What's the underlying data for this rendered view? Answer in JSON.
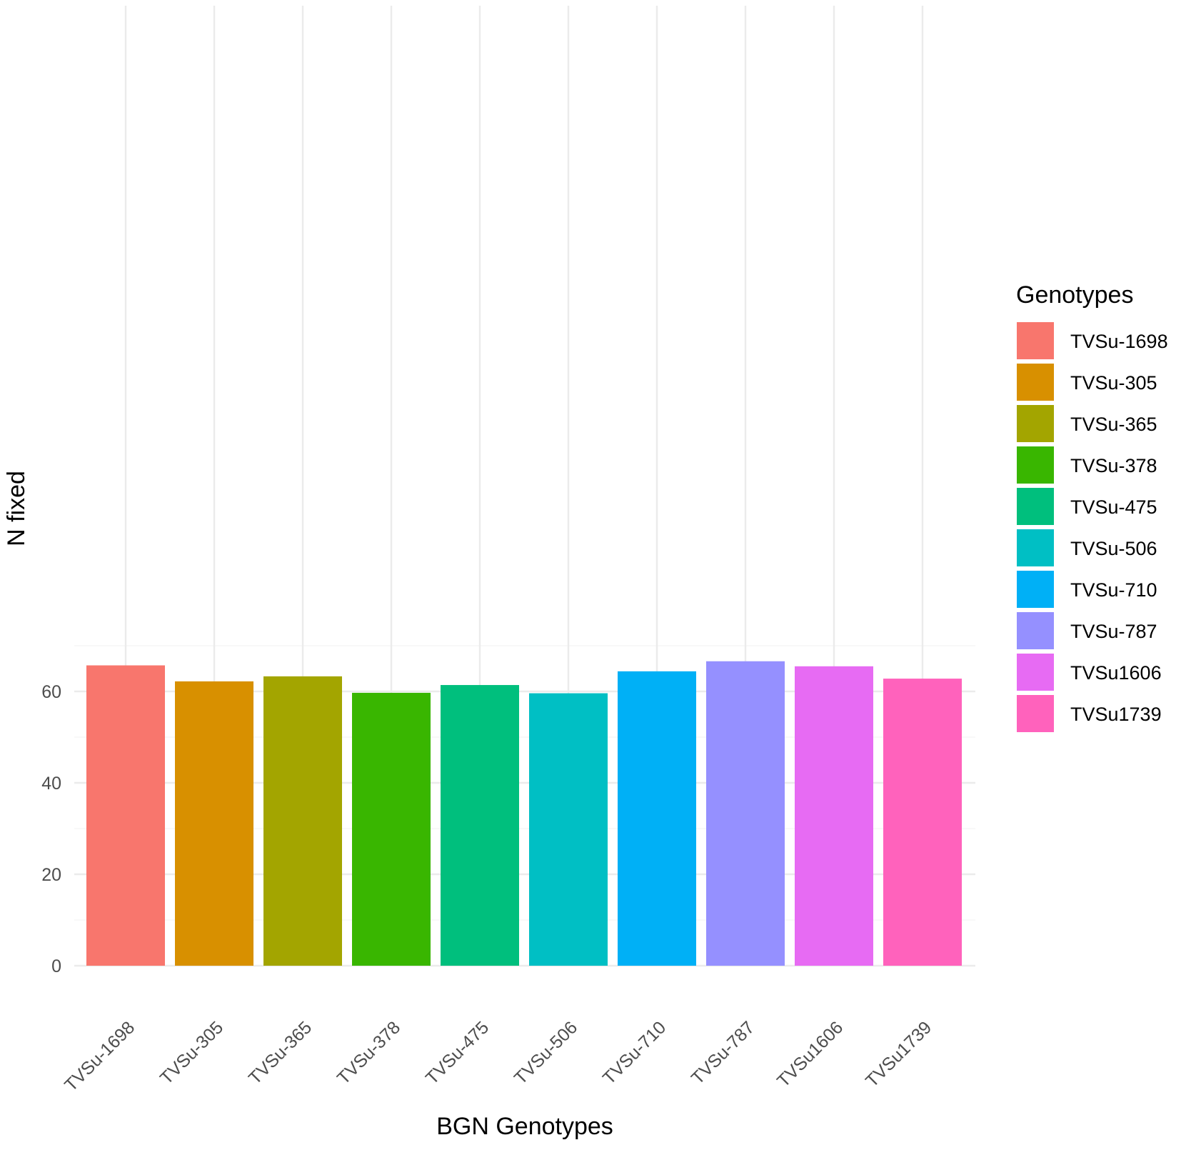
{
  "chart_data": {
    "type": "bar",
    "categories": [
      "TVSu-1698",
      "TVSu-305",
      "TVSu-365",
      "TVSu-378",
      "TVSu-475",
      "TVSu-506",
      "TVSu-710",
      "TVSu-787",
      "TVSu1606",
      "TVSu1739"
    ],
    "values": [
      65.7,
      62.2,
      63.3,
      59.7,
      61.4,
      59.6,
      64.4,
      66.6,
      65.5,
      62.8
    ],
    "colors": [
      "#F8766D",
      "#D89000",
      "#A3A500",
      "#39B600",
      "#00BF7D",
      "#00BFC4",
      "#00B0F6",
      "#9590FF",
      "#E76BF3",
      "#FF62BC"
    ],
    "xlabel": "BGN Genotypes",
    "ylabel": "N fixed",
    "ylim": [
      0,
      70
    ],
    "yticks": [
      0,
      20,
      40,
      60
    ],
    "grid": true,
    "legend": {
      "title": "Genotypes",
      "placement": "right",
      "entries": [
        "TVSu-1698",
        "TVSu-305",
        "TVSu-365",
        "TVSu-378",
        "TVSu-475",
        "TVSu-506",
        "TVSu-710",
        "TVSu-787",
        "TVSu1606",
        "TVSu1739"
      ]
    }
  }
}
